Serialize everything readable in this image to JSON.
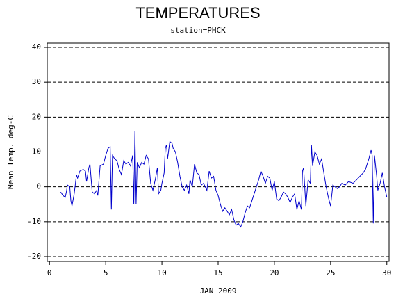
{
  "chart_data": {
    "type": "line",
    "title": "TEMPERATURES",
    "subtitle": "station=PHCK",
    "xlabel": "JAN 2009",
    "ylabel": "Mean Temp. deg-C",
    "xlim": [
      -0.2,
      30.2
    ],
    "xticks": [
      0,
      5,
      10,
      15,
      20,
      25,
      30
    ],
    "ylim": [
      -21.4,
      41.2
    ],
    "yticks": [
      -20,
      -10,
      0,
      10,
      20,
      30,
      40
    ],
    "grid": true,
    "x": [
      1.0,
      1.2,
      1.4,
      1.5,
      1.6,
      1.8,
      1.9,
      2.0,
      2.2,
      2.4,
      2.5,
      2.7,
      3.0,
      3.2,
      3.3,
      3.5,
      3.6,
      3.8,
      4.0,
      4.2,
      4.3,
      4.5,
      4.8,
      5.0,
      5.2,
      5.4,
      5.5,
      5.6,
      5.8,
      6.0,
      6.2,
      6.4,
      6.6,
      6.8,
      7.0,
      7.2,
      7.4,
      7.5,
      7.6,
      7.7,
      7.8,
      8.0,
      8.2,
      8.4,
      8.6,
      8.8,
      9.0,
      9.2,
      9.4,
      9.6,
      9.7,
      9.9,
      10.0,
      10.2,
      10.3,
      10.4,
      10.5,
      10.7,
      10.9,
      11.0,
      11.2,
      11.4,
      11.6,
      11.8,
      12.0,
      12.2,
      12.4,
      12.5,
      12.7,
      12.9,
      13.1,
      13.3,
      13.5,
      13.7,
      14.0,
      14.2,
      14.4,
      14.6,
      14.8,
      15.0,
      15.2,
      15.4,
      15.6,
      16.0,
      16.2,
      16.4,
      16.6,
      16.8,
      17.0,
      17.2,
      17.4,
      17.6,
      17.8,
      18.0,
      18.3,
      18.6,
      18.8,
      19.0,
      19.2,
      19.4,
      19.6,
      19.8,
      20.0,
      20.2,
      20.4,
      20.6,
      20.8,
      21.0,
      21.2,
      21.4,
      21.6,
      21.8,
      22.0,
      22.2,
      22.4,
      22.5,
      22.6,
      22.8,
      23.0,
      23.2,
      23.3,
      23.4,
      23.6,
      23.8,
      24.0,
      24.2,
      24.4,
      24.6,
      24.8,
      25.0,
      25.2,
      25.4,
      25.6,
      25.8,
      26.0,
      26.3,
      26.6,
      27.0,
      27.3,
      27.6,
      27.9,
      28.1,
      28.4,
      28.6,
      28.7,
      28.8,
      28.9,
      29.0,
      29.1,
      29.2,
      29.4,
      29.6,
      29.8,
      30.0
    ],
    "series": [
      {
        "name": "Mean Temp",
        "color": "#0000cc",
        "values": [
          -1.5,
          -2.5,
          -3,
          -1.5,
          0.5,
          0,
          -4,
          -5.5,
          -2,
          3.5,
          2.5,
          4.5,
          5,
          4.5,
          1.5,
          5.5,
          6.5,
          -1.5,
          -2,
          -1,
          -2.5,
          6,
          6.5,
          9,
          11,
          11.5,
          -6.5,
          9,
          8,
          7.5,
          5,
          3.5,
          7.5,
          6.5,
          7,
          6,
          9,
          -5,
          16,
          -5,
          7,
          5.5,
          7,
          6.5,
          9,
          8,
          1,
          -1,
          2,
          5.5,
          -2,
          -1,
          1,
          4,
          11,
          12,
          8,
          13,
          12.5,
          11,
          10,
          7,
          3,
          0,
          -1,
          0.5,
          -2,
          2,
          0,
          6.5,
          4,
          3.5,
          0.5,
          1,
          -1,
          4.5,
          2.5,
          3,
          -1,
          -2.5,
          -5,
          -7,
          -6,
          -8,
          -6.5,
          -9.5,
          -11,
          -10.5,
          -11.5,
          -10,
          -7.5,
          -5.5,
          -6,
          -4,
          -1,
          2,
          4.5,
          3,
          1,
          3,
          2.5,
          -1,
          1.5,
          -3.5,
          -4,
          -3,
          -1.5,
          -2,
          -3,
          -4.5,
          -3,
          -2,
          -6.5,
          -4,
          -6.5,
          4.5,
          5.5,
          -5.5,
          2,
          1,
          12,
          6,
          10,
          9,
          6.5,
          8,
          4,
          0,
          -3,
          -5.5,
          0.5,
          0,
          -0.5,
          0,
          1,
          0.5,
          1.5,
          1,
          2,
          3,
          4,
          5,
          8,
          10.5,
          9,
          -10.5,
          9,
          6,
          3,
          -1,
          1,
          4,
          0,
          -3
        ]
      }
    ]
  }
}
